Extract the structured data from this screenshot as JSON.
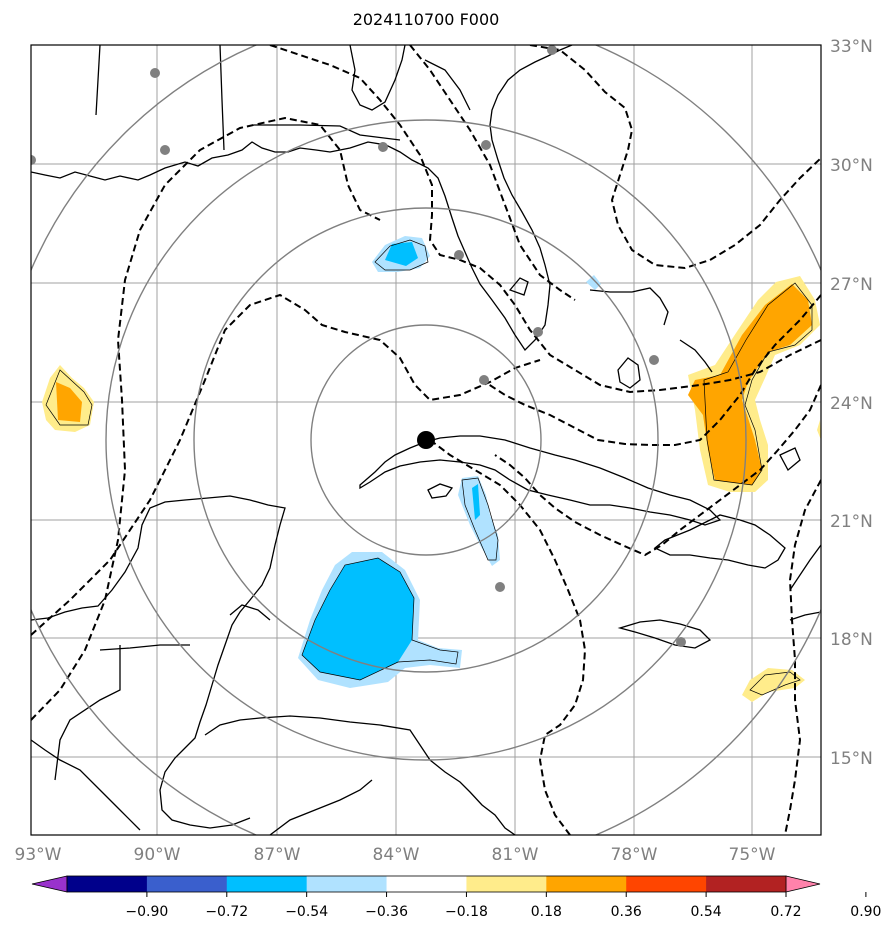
{
  "title": "2024110700 F000",
  "map": {
    "lon_labels": [
      "93°W",
      "90°W",
      "87°W",
      "84°W",
      "81°W",
      "78°W",
      "75°W"
    ],
    "lat_labels": [
      "33°N",
      "30°N",
      "27°N",
      "24°N",
      "21°N",
      "18°N",
      "15°N"
    ],
    "gridline_color": "#a0a0a0",
    "range_ring_color": "#808080",
    "center_marker": "storm-center-dot"
  },
  "colorbar": {
    "colors": [
      "#9932CC",
      "#00008B",
      "#3A5FCD",
      "#00BFFF",
      "#B0E2FF",
      "#FFFFFF",
      "#FFEC8B",
      "#FFA500",
      "#FF4500",
      "#B22222",
      "#FF82AB"
    ],
    "tick_labels": [
      "−0.90",
      "−0.72",
      "−0.54",
      "−0.36",
      "−0.18",
      "0.18",
      "0.36",
      "0.54",
      "0.72",
      "0.90"
    ]
  }
}
